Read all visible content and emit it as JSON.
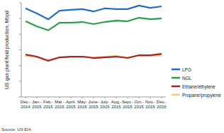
{
  "chart_data": {
    "type": "line",
    "y_label": "US gas plant field production, Mbpd",
    "source": "Source: US EIA",
    "categories": [
      "Dec.- 2014",
      "Jan.- 2015",
      "Feb.- 2015",
      "Mar.- 2015",
      "April- 2015",
      "May- 2015",
      "June- 2015",
      "July- 2015",
      "Aug.- 2015",
      "Sept.- 2015",
      "Oct.- 2015",
      "Nov.- 2015",
      "Dec.- 2015"
    ],
    "series": [
      {
        "name": "LPG",
        "color": "#1e6ec8",
        "values": [
          113,
          106.5,
          99,
          110,
          111,
          112,
          109,
          113,
          112,
          112,
          116.5,
          113.5,
          115.5
        ]
      },
      {
        "name": "NGL",
        "color": "#2b9e4b",
        "values": [
          96.5,
          90,
          85,
          94.7,
          94.7,
          95.6,
          92.9,
          95.6,
          97.4,
          96.5,
          101,
          99.2,
          100
        ]
      },
      {
        "name": "Ethane/ethylene",
        "color": "#a3262a",
        "values": [
          54,
          51.4,
          46,
          50.5,
          51.4,
          51.4,
          49.6,
          50.5,
          51.4,
          49.6,
          53.2,
          53.2,
          55
        ]
      },
      {
        "name": "Propane/propylene",
        "color": "#f7c77f",
        "values": [
          52.3,
          50.5,
          47,
          50.5,
          51.4,
          51.4,
          50.5,
          51.4,
          52.3,
          50.5,
          52.3,
          52.3,
          53.2
        ]
      }
    ],
    "ylim": [
      0,
      120
    ],
    "yticks": [
      0,
      20,
      40,
      60,
      80,
      100,
      120
    ],
    "tick_labels": "x",
    "grid": false,
    "legend": "right"
  }
}
